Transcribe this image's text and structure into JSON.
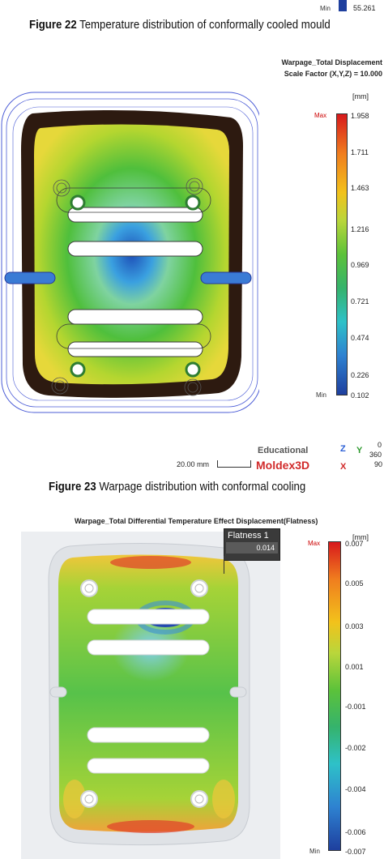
{
  "top_fragment": {
    "min_label": "Min",
    "min_value": "55.261"
  },
  "fig22": {
    "label": "Figure 22",
    "text": " Temperature distribution of conformally cooled mould"
  },
  "fig23": {
    "label": "Figure 23",
    "text": " Warpage distribution with conformal cooling",
    "title_line1": "Warpage_Total Displacement",
    "title_line2": "Scale Factor (X,Y,Z) = 10.000",
    "unit": "[mm]",
    "max_label": "Max",
    "min_label": "Min",
    "ticks": [
      "1.958",
      "1.711",
      "1.463",
      "1.216",
      "0.969",
      "0.721",
      "0.474",
      "0.226",
      "0.102"
    ],
    "scale_bar": "20.00 mm",
    "edu": "Educational",
    "brand": "Moldex3D",
    "axis_z": "Z",
    "axis_y": "Y",
    "axis_x": "X",
    "rot1": "0",
    "rot2": "360",
    "rot3": "90"
  },
  "fig24": {
    "title": "Warpage_Total Differential Temperature Effect Displacement(Flatness)",
    "unit": "[mm]",
    "max_label": "Max",
    "min_label": "Min",
    "ticks": [
      "0.007",
      "0.005",
      "0.003",
      "0.001",
      "-0.001",
      "-0.002",
      "-0.004",
      "-0.006",
      "-0.007"
    ],
    "flatness_label": "Flatness 1",
    "flatness_value": "0.014"
  },
  "colors": {
    "max": "#d7191c",
    "min": "#1e3f9e"
  }
}
